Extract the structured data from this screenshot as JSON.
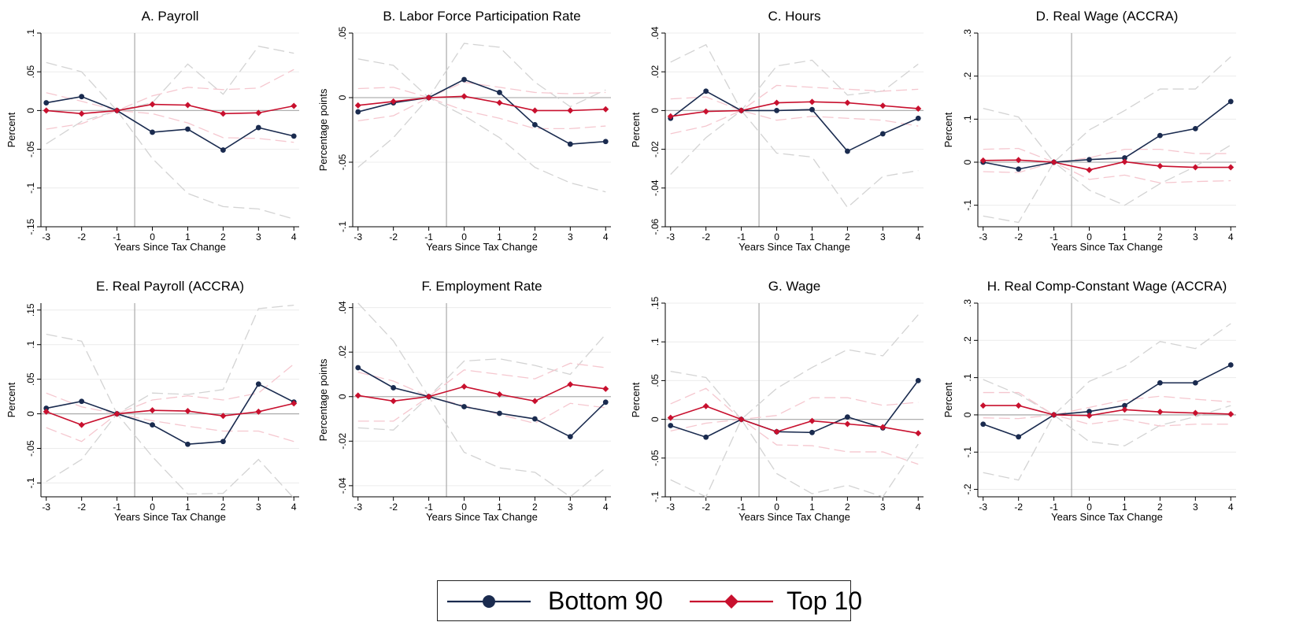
{
  "colors": {
    "bottom90": "#1a2b4f",
    "top10": "#c8102e",
    "ci_bottom": "#d3d3d3",
    "ci_top": "#f5c7cf",
    "zero": "#b0b0b0",
    "vline": "#b0b0b0",
    "grid": "#ececec"
  },
  "legend": {
    "items": [
      {
        "label": "Bottom 90",
        "color": "#1a2b4f",
        "marker": "circle"
      },
      {
        "label": "Top 10",
        "color": "#c8102e",
        "marker": "diamond"
      }
    ]
  },
  "chart_data": [
    {
      "type": "line",
      "title": "A. Payroll",
      "xlabel": "Years Since Tax Change",
      "ylabel": "Percent",
      "x": [
        -3,
        -2,
        -1,
        0,
        1,
        2,
        3,
        4
      ],
      "xticks": [
        "-3",
        "-2",
        "-1",
        "0",
        "1",
        "2",
        "3",
        "4"
      ],
      "ylim": [
        -0.15,
        0.1
      ],
      "yticks": [
        {
          "v": 0.1,
          "t": ".1"
        },
        {
          "v": 0.05,
          "t": ".05"
        },
        {
          "v": 0,
          "t": "0"
        },
        {
          "v": -0.05,
          "t": "-.05"
        },
        {
          "v": -0.1,
          "t": "-.1"
        },
        {
          "v": -0.15,
          "t": "-.15"
        }
      ],
      "series": [
        {
          "name": "Bottom 90",
          "values": [
            0.01,
            0.018,
            0,
            -0.028,
            -0.024,
            -0.051,
            -0.022,
            -0.033
          ]
        },
        {
          "name": "Top 10",
          "values": [
            0,
            -0.004,
            0,
            0.008,
            0.007,
            -0.004,
            -0.003,
            0.006
          ]
        }
      ],
      "ci": [
        {
          "series": "Bottom 90",
          "upper": [
            0.062,
            0.05,
            0,
            0.01,
            0.06,
            0.021,
            0.083,
            0.074
          ],
          "lower": [
            -0.043,
            -0.014,
            0,
            -0.062,
            -0.107,
            -0.124,
            -0.127,
            -0.14
          ]
        },
        {
          "series": "Top 10",
          "upper": [
            0.023,
            0.012,
            0,
            0.019,
            0.03,
            0.027,
            0.029,
            0.053
          ],
          "lower": [
            -0.024,
            -0.017,
            0,
            -0.004,
            -0.016,
            -0.035,
            -0.036,
            -0.041
          ]
        }
      ]
    },
    {
      "type": "line",
      "title": "B. Labor Force Participation Rate",
      "xlabel": "Years Since Tax Change",
      "ylabel": "Percentage points",
      "x": [
        -3,
        -2,
        -1,
        0,
        1,
        2,
        3,
        4
      ],
      "xticks": [
        "-3",
        "-2",
        "-1",
        "0",
        "1",
        "2",
        "3",
        "4"
      ],
      "ylim": [
        -0.1,
        0.05
      ],
      "yticks": [
        {
          "v": 0.05,
          "t": ".05"
        },
        {
          "v": 0,
          "t": "0"
        },
        {
          "v": -0.05,
          "t": "-.05"
        },
        {
          "v": -0.1,
          "t": "-.1"
        }
      ],
      "series": [
        {
          "name": "Bottom 90",
          "values": [
            -0.011,
            -0.004,
            0,
            0.014,
            0.004,
            -0.021,
            -0.036,
            -0.034
          ]
        },
        {
          "name": "Top 10",
          "values": [
            -0.006,
            -0.003,
            0,
            0.001,
            -0.004,
            -0.01,
            -0.01,
            -0.009
          ]
        }
      ],
      "ci": [
        {
          "series": "Bottom 90",
          "upper": [
            0.03,
            0.025,
            0,
            0.042,
            0.039,
            0.012,
            -0.007,
            0.006
          ],
          "lower": [
            -0.054,
            -0.031,
            0,
            -0.014,
            -0.031,
            -0.054,
            -0.066,
            -0.073
          ]
        },
        {
          "series": "Top 10",
          "upper": [
            0.007,
            0.008,
            0,
            0.012,
            0.008,
            0.004,
            0.003,
            0.004
          ],
          "lower": [
            -0.018,
            -0.014,
            0,
            -0.01,
            -0.016,
            -0.024,
            -0.024,
            -0.022
          ]
        }
      ]
    },
    {
      "type": "line",
      "title": "C. Hours",
      "xlabel": "Years Since Tax Change",
      "ylabel": "Percent",
      "x": [
        -3,
        -2,
        -1,
        0,
        1,
        2,
        3,
        4
      ],
      "xticks": [
        "-3",
        "-2",
        "-1",
        "0",
        "1",
        "2",
        "3",
        "4"
      ],
      "ylim": [
        -0.06,
        0.04
      ],
      "yticks": [
        {
          "v": 0.04,
          "t": ".04"
        },
        {
          "v": 0.02,
          "t": ".02"
        },
        {
          "v": 0,
          "t": "0"
        },
        {
          "v": -0.02,
          "t": "-.02"
        },
        {
          "v": -0.04,
          "t": "-.04"
        },
        {
          "v": -0.06,
          "t": "-.06"
        }
      ],
      "series": [
        {
          "name": "Bottom 90",
          "values": [
            -0.004,
            0.01,
            0,
            0,
            0.0005,
            -0.021,
            -0.012,
            -0.004
          ]
        },
        {
          "name": "Top 10",
          "values": [
            -0.003,
            -0.0005,
            0,
            0.004,
            0.0045,
            0.004,
            0.0025,
            0.001
          ]
        }
      ],
      "ci": [
        {
          "series": "Bottom 90",
          "upper": [
            0.025,
            0.034,
            0,
            0.023,
            0.026,
            0.008,
            0.01,
            0.024
          ],
          "lower": [
            -0.033,
            -0.014,
            0,
            -0.022,
            -0.024,
            -0.05,
            -0.034,
            -0.031
          ]
        },
        {
          "series": "Top 10",
          "upper": [
            0.006,
            0.007,
            0,
            0.013,
            0.012,
            0.011,
            0.01,
            0.011
          ],
          "lower": [
            -0.012,
            -0.008,
            0,
            -0.005,
            -0.003,
            -0.004,
            -0.005,
            -0.008
          ]
        }
      ]
    },
    {
      "type": "line",
      "title": "D. Real Wage (ACCRA)",
      "xlabel": "Years Since Tax Change",
      "ylabel": "Percent",
      "x": [
        -3,
        -2,
        -1,
        0,
        1,
        2,
        3,
        4
      ],
      "xticks": [
        "-3",
        "-2",
        "-1",
        "0",
        "1",
        "2",
        "3",
        "4"
      ],
      "ylim": [
        -0.15,
        0.3
      ],
      "yticks": [
        {
          "v": 0.3,
          "t": ".3"
        },
        {
          "v": 0.2,
          "t": ".2"
        },
        {
          "v": 0.1,
          "t": ".1"
        },
        {
          "v": 0,
          "t": "0"
        },
        {
          "v": -0.1,
          "t": "-.1"
        }
      ],
      "series": [
        {
          "name": "Bottom 90",
          "values": [
            0,
            -0.016,
            0,
            0.006,
            0.01,
            0.062,
            0.078,
            0.141
          ]
        },
        {
          "name": "Top 10",
          "values": [
            0.004,
            0.005,
            0,
            -0.018,
            0.001,
            -0.009,
            -0.012,
            -0.012
          ]
        }
      ],
      "ci": [
        {
          "series": "Bottom 90",
          "upper": [
            0.125,
            0.105,
            0,
            0.075,
            0.12,
            0.17,
            0.17,
            0.245
          ],
          "lower": [
            -0.125,
            -0.14,
            0,
            -0.065,
            -0.1,
            -0.05,
            -0.01,
            0.04
          ]
        },
        {
          "series": "Top 10",
          "upper": [
            0.03,
            0.032,
            0,
            0.01,
            0.03,
            0.03,
            0.02,
            0.02
          ],
          "lower": [
            -0.022,
            -0.024,
            0,
            -0.04,
            -0.03,
            -0.048,
            -0.045,
            -0.043
          ]
        }
      ]
    },
    {
      "type": "line",
      "title": "E. Real Payroll (ACCRA)",
      "xlabel": "Years Since Tax Change",
      "ylabel": "Percent",
      "x": [
        -3,
        -2,
        -1,
        0,
        1,
        2,
        3,
        4
      ],
      "xticks": [
        "-3",
        "-2",
        "-1",
        "0",
        "1",
        "2",
        "3",
        "4"
      ],
      "ylim": [
        -0.12,
        0.16
      ],
      "yticks": [
        {
          "v": 0.15,
          "t": ".15"
        },
        {
          "v": 0.1,
          "t": ".1"
        },
        {
          "v": 0.05,
          "t": ".05"
        },
        {
          "v": 0,
          "t": "0"
        },
        {
          "v": -0.05,
          "t": "-.05"
        },
        {
          "v": -0.1,
          "t": "-.1"
        }
      ],
      "series": [
        {
          "name": "Bottom 90",
          "values": [
            0.008,
            0.018,
            0,
            -0.016,
            -0.044,
            -0.04,
            0.043,
            0.017
          ]
        },
        {
          "name": "Top 10",
          "values": [
            0.003,
            -0.016,
            0,
            0.005,
            0.004,
            -0.003,
            0.003,
            0.015
          ]
        }
      ],
      "ci": [
        {
          "series": "Bottom 90",
          "upper": [
            0.115,
            0.105,
            0,
            0.03,
            0.028,
            0.035,
            0.152,
            0.157
          ],
          "lower": [
            -0.098,
            -0.066,
            0,
            -0.062,
            -0.116,
            -0.115,
            -0.066,
            -0.122
          ]
        },
        {
          "series": "Top 10",
          "upper": [
            0.03,
            0.01,
            0,
            0.02,
            0.026,
            0.02,
            0.03,
            0.072
          ],
          "lower": [
            -0.02,
            -0.04,
            0,
            -0.01,
            -0.018,
            -0.025,
            -0.025,
            -0.04
          ]
        }
      ]
    },
    {
      "type": "line",
      "title": "F. Employment Rate",
      "xlabel": "Years Since Tax Change",
      "ylabel": "Percentage points",
      "x": [
        -3,
        -2,
        -1,
        0,
        1,
        2,
        3,
        4
      ],
      "xticks": [
        "-3",
        "-2",
        "-1",
        "0",
        "1",
        "2",
        "3",
        "4"
      ],
      "ylim": [
        -0.045,
        0.042
      ],
      "yticks": [
        {
          "v": 0.04,
          "t": ".04"
        },
        {
          "v": 0.02,
          "t": ".02"
        },
        {
          "v": 0,
          "t": "0"
        },
        {
          "v": -0.02,
          "t": "-.02"
        },
        {
          "v": -0.04,
          "t": "-.04"
        }
      ],
      "series": [
        {
          "name": "Bottom 90",
          "values": [
            0.013,
            0.004,
            0,
            -0.0045,
            -0.0075,
            -0.01,
            -0.018,
            -0.0025
          ]
        },
        {
          "name": "Top 10",
          "values": [
            0.0005,
            -0.002,
            0,
            0.0045,
            0.001,
            -0.002,
            0.0055,
            0.0035
          ]
        }
      ],
      "ci": [
        {
          "series": "Bottom 90",
          "upper": [
            0.042,
            0.025,
            0,
            0.016,
            0.017,
            0.014,
            0.01,
            0.028
          ],
          "lower": [
            -0.014,
            -0.015,
            0,
            -0.025,
            -0.032,
            -0.034,
            -0.045,
            -0.032
          ]
        },
        {
          "series": "Top 10",
          "upper": [
            0.011,
            0.007,
            0,
            0.012,
            0.01,
            0.008,
            0.015,
            0.013
          ],
          "lower": [
            -0.011,
            -0.011,
            0,
            -0.004,
            -0.008,
            -0.012,
            -0.003,
            -0.005
          ]
        }
      ]
    },
    {
      "type": "line",
      "title": "G. Wage",
      "xlabel": "Years Since Tax Change",
      "ylabel": "Percent",
      "x": [
        -3,
        -2,
        -1,
        0,
        1,
        2,
        3,
        4
      ],
      "xticks": [
        "-3",
        "-2",
        "-1",
        "0",
        "1",
        "2",
        "3",
        "4"
      ],
      "ylim": [
        -0.1,
        0.15
      ],
      "yticks": [
        {
          "v": 0.15,
          "t": ".15"
        },
        {
          "v": 0.1,
          "t": ".1"
        },
        {
          "v": 0.05,
          "t": ".05"
        },
        {
          "v": 0,
          "t": "0"
        },
        {
          "v": -0.05,
          "t": "-.05"
        },
        {
          "v": -0.1,
          "t": "-.1"
        }
      ],
      "series": [
        {
          "name": "Bottom 90",
          "values": [
            -0.008,
            -0.023,
            0,
            -0.016,
            -0.017,
            0.003,
            -0.011,
            0.05
          ]
        },
        {
          "name": "Top 10",
          "values": [
            0.002,
            0.017,
            0,
            -0.016,
            -0.002,
            -0.006,
            -0.01,
            -0.018
          ]
        }
      ],
      "ci": [
        {
          "series": "Bottom 90",
          "upper": [
            0.062,
            0.054,
            0,
            0.04,
            0.067,
            0.09,
            0.082,
            0.135
          ],
          "lower": [
            -0.078,
            -0.1,
            0,
            -0.07,
            -0.096,
            -0.085,
            -0.1,
            -0.032
          ]
        },
        {
          "series": "Top 10",
          "upper": [
            0.02,
            0.04,
            0,
            0.005,
            0.028,
            0.028,
            0.018,
            0.022
          ],
          "lower": [
            -0.015,
            -0.005,
            0,
            -0.033,
            -0.034,
            -0.042,
            -0.042,
            -0.058
          ]
        }
      ]
    },
    {
      "type": "line",
      "title": "H. Real Comp-Constant Wage (ACCRA)",
      "xlabel": "Years Since Tax Change",
      "ylabel": "Percent",
      "x": [
        -3,
        -2,
        -1,
        0,
        1,
        2,
        3,
        4
      ],
      "xticks": [
        "-3",
        "-2",
        "-1",
        "0",
        "1",
        "2",
        "3",
        "4"
      ],
      "ylim": [
        -0.22,
        0.3
      ],
      "yticks": [
        {
          "v": 0.3,
          "t": ".3"
        },
        {
          "v": 0.2,
          "t": ".2"
        },
        {
          "v": 0.1,
          "t": ".1"
        },
        {
          "v": 0,
          "t": "0"
        },
        {
          "v": -0.1,
          "t": "-.1"
        },
        {
          "v": -0.2,
          "t": "-.2"
        }
      ],
      "series": [
        {
          "name": "Bottom 90",
          "values": [
            -0.025,
            -0.059,
            0,
            0.009,
            0.025,
            0.086,
            0.086,
            0.134
          ]
        },
        {
          "name": "Top 10",
          "values": [
            0.025,
            0.025,
            0,
            -0.002,
            0.014,
            0.008,
            0.005,
            0.002
          ]
        }
      ],
      "ci": [
        {
          "series": "Bottom 90",
          "upper": [
            0.095,
            0.055,
            0,
            0.09,
            0.13,
            0.197,
            0.178,
            0.245
          ],
          "lower": [
            -0.155,
            -0.175,
            0,
            -0.072,
            -0.083,
            -0.028,
            -0.005,
            0.025
          ]
        },
        {
          "series": "Top 10",
          "upper": [
            0.06,
            0.06,
            0,
            0.02,
            0.04,
            0.05,
            0.042,
            0.035
          ],
          "lower": [
            -0.008,
            -0.01,
            0,
            -0.025,
            -0.012,
            -0.03,
            -0.025,
            -0.025
          ]
        }
      ]
    }
  ]
}
